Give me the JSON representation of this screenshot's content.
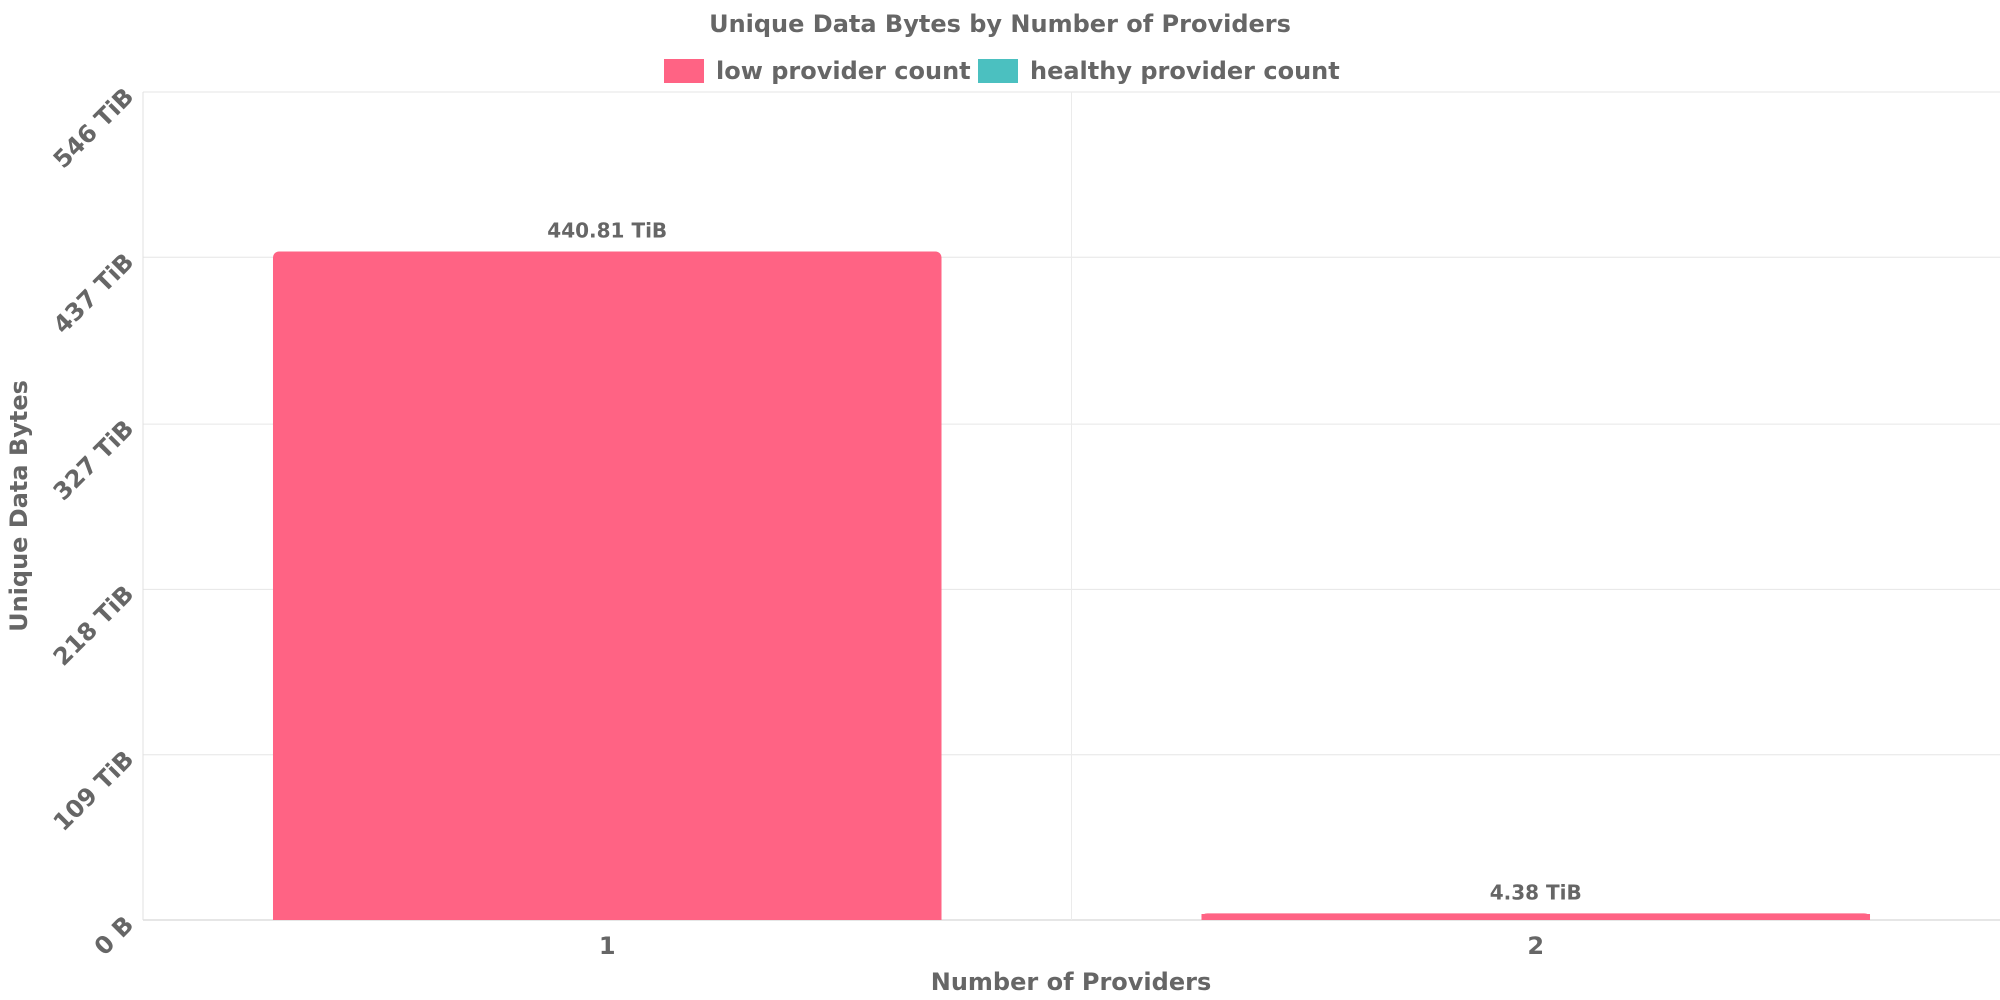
{
  "chart_data": {
    "type": "bar",
    "title": "Unique Data Bytes by Number of Providers",
    "xlabel": "Number of Providers",
    "ylabel": "Unique Data Bytes",
    "categories": [
      "1",
      "2"
    ],
    "series": [
      {
        "name": "low provider count",
        "color": "#ff6384",
        "values": [
          440.81,
          4.38
        ],
        "value_labels": [
          "440.81 TiB",
          "4.38 TiB"
        ]
      },
      {
        "name": "healthy provider count",
        "color": "#4bc0c0",
        "values": [
          0,
          0
        ],
        "value_labels": []
      }
    ],
    "y_unit": "TiB",
    "ylim": [
      0,
      546
    ],
    "yticks": [
      0,
      109,
      218,
      327,
      437,
      546
    ],
    "ytick_labels": [
      "0 B",
      "109 TiB",
      "218 TiB",
      "327 TiB",
      "437 TiB",
      "546 TiB"
    ],
    "legend_position": "top",
    "grid": true
  }
}
